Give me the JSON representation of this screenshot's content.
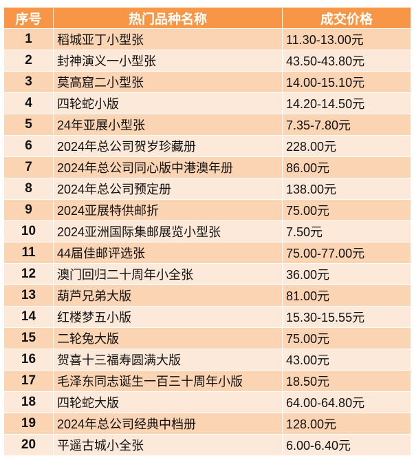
{
  "table": {
    "headers": [
      "序号",
      "热门品种名称",
      "成交价格"
    ],
    "rows": [
      [
        "1",
        "稻城亚丁小型张",
        "11.30-13.00元"
      ],
      [
        "2",
        "封神演义一小型张",
        "43.50-43.80元"
      ],
      [
        "3",
        "莫高窟二小型张",
        "14.00-15.10元"
      ],
      [
        "4",
        "四轮蛇小版",
        "14.20-14.50元"
      ],
      [
        "5",
        "24年亚展小型张",
        "7.35-7.80元"
      ],
      [
        "6",
        "2024年总公司贺岁珍藏册",
        "228.00元"
      ],
      [
        "7",
        "2024年总公司同心版中港澳年册",
        "86.00元"
      ],
      [
        "8",
        "2024年总公司预定册",
        "138.00元"
      ],
      [
        "9",
        "2024亚展特供邮折",
        "75.00元"
      ],
      [
        "10",
        "2024亚洲国际集邮展览小型张",
        "7.50元"
      ],
      [
        "11",
        "44届佳邮评选张",
        "75.00-77.00元"
      ],
      [
        "12",
        "澳门回归二十周年小全张",
        "36.00元"
      ],
      [
        "13",
        "葫芦兄弟大版",
        "81.00元"
      ],
      [
        "14",
        "红楼梦五小版",
        "15.30-15.55元"
      ],
      [
        "15",
        "二轮兔大版",
        "75.00元"
      ],
      [
        "16",
        "贺喜十三福寿圆满大版",
        "43.00元"
      ],
      [
        "17",
        "毛泽东同志诞生一百三十周年小版",
        "18.50元"
      ],
      [
        "18",
        "四轮蛇大版",
        "64.00-64.80元"
      ],
      [
        "19",
        "2024年总公司经典中档册",
        "128.00元"
      ],
      [
        "20",
        "平遥古城小全张",
        "6.00-6.40元"
      ]
    ]
  },
  "colors": {
    "header": "#F79646",
    "row_dark": "#FBD4B4",
    "row_light": "#FDE9D9"
  }
}
